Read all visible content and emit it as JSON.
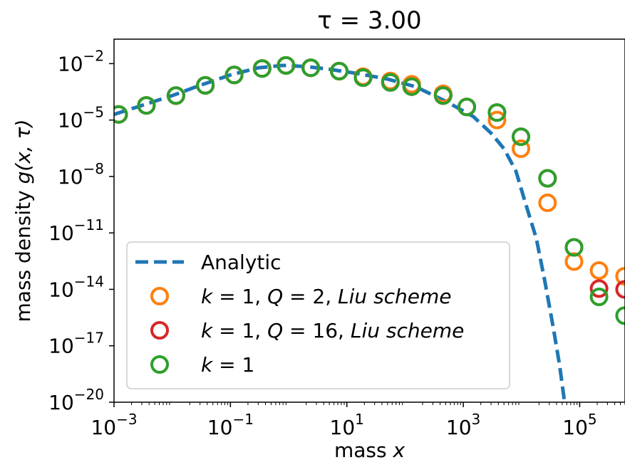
{
  "chart_data": {
    "type": "scatter",
    "title": "τ = 3.00",
    "xlabel": "mass x",
    "ylabel": "mass density g(x, τ)",
    "xscale": "log",
    "yscale": "log",
    "xlim": [
      0.001,
      600000
    ],
    "ylim": [
      1e-20,
      0.2
    ],
    "xticks": [
      {
        "value": 0.001,
        "base": "10",
        "exp": "−3"
      },
      {
        "value": 0.1,
        "base": "10",
        "exp": "−1"
      },
      {
        "value": 10,
        "base": "10",
        "exp": "1"
      },
      {
        "value": 1000,
        "base": "10",
        "exp": "3"
      },
      {
        "value": 100000,
        "base": "10",
        "exp": "5"
      }
    ],
    "yticks": [
      {
        "value": 0.01,
        "base": "10",
        "exp": "−2"
      },
      {
        "value": 1e-05,
        "base": "10",
        "exp": "−5"
      },
      {
        "value": 1e-08,
        "base": "10",
        "exp": "−8"
      },
      {
        "value": 1e-11,
        "base": "10",
        "exp": "−11"
      },
      {
        "value": 1e-14,
        "base": "10",
        "exp": "−14"
      },
      {
        "value": 1e-17,
        "base": "10",
        "exp": "−17"
      },
      {
        "value": 1e-20,
        "base": "10",
        "exp": "−20"
      }
    ],
    "grid": false,
    "legend_position": "lower-left",
    "series": [
      {
        "name": "Analytic",
        "style": "dashed-line",
        "color": "#1f77b4",
        "x": [
          0.001,
          0.003,
          0.01,
          0.03,
          0.1,
          0.3,
          0.8,
          2,
          5,
          15,
          50,
          150,
          500,
          1500,
          3000,
          5000,
          8000,
          12000,
          18000,
          25000,
          35000,
          45000,
          55000
        ],
        "y": [
          2e-05,
          6e-05,
          0.0002,
          0.0007,
          0.0025,
          0.006,
          0.008,
          0.007,
          0.005,
          0.003,
          0.0015,
          0.0006,
          0.0001,
          1.5e-05,
          2e-06,
          3e-07,
          2e-08,
          3e-10,
          5e-12,
          3e-14,
          1e-16,
          1e-18,
          1e-20
        ]
      },
      {
        "name": "k = 1, Q = 2, Liu scheme",
        "style": "open-circle",
        "color": "#ff7f0e",
        "x": [
          0.0012,
          0.0036,
          0.0116,
          0.037,
          0.116,
          0.35,
          0.9,
          2.4,
          7.4,
          19,
          56,
          130,
          450,
          1150,
          3800,
          9800,
          28000,
          80000,
          215000,
          590000
        ],
        "y": [
          2e-05,
          6e-05,
          0.0002,
          0.0007,
          0.0025,
          0.0055,
          0.008,
          0.006,
          0.004,
          0.002,
          0.0012,
          0.0008,
          0.00025,
          5e-05,
          1e-05,
          3e-07,
          4e-10,
          3e-13,
          1e-13,
          5e-14
        ]
      },
      {
        "name": "k = 1, Q = 16, Liu scheme",
        "style": "open-circle",
        "color": "#d62728",
        "x": [
          0.0012,
          0.0036,
          0.0116,
          0.037,
          0.116,
          0.35,
          0.9,
          2.4,
          7.4,
          19,
          56,
          130,
          450,
          1150,
          3800,
          9800,
          28000,
          80000,
          215000,
          590000
        ],
        "y": [
          2e-05,
          6e-05,
          0.0002,
          0.0007,
          0.0025,
          0.0055,
          0.008,
          0.006,
          0.004,
          0.0018,
          0.001,
          0.0006,
          0.0002,
          5e-05,
          2.5e-05,
          1.3e-06,
          8e-09,
          1.7e-12,
          1.1e-14,
          1e-14
        ]
      },
      {
        "name": "k = 1",
        "style": "open-circle",
        "color": "#2ca02c",
        "x": [
          0.0012,
          0.0036,
          0.0116,
          0.037,
          0.116,
          0.35,
          0.9,
          2.4,
          7.4,
          19,
          56,
          130,
          450,
          1150,
          3800,
          9800,
          28000,
          80000,
          215000,
          590000
        ],
        "y": [
          2e-05,
          6e-05,
          0.0002,
          0.0007,
          0.0025,
          0.0055,
          0.008,
          0.006,
          0.004,
          0.0018,
          0.001,
          0.0006,
          0.0002,
          5e-05,
          2.5e-05,
          1.3e-06,
          8e-09,
          1.7e-12,
          4e-15,
          4e-16
        ]
      }
    ]
  }
}
